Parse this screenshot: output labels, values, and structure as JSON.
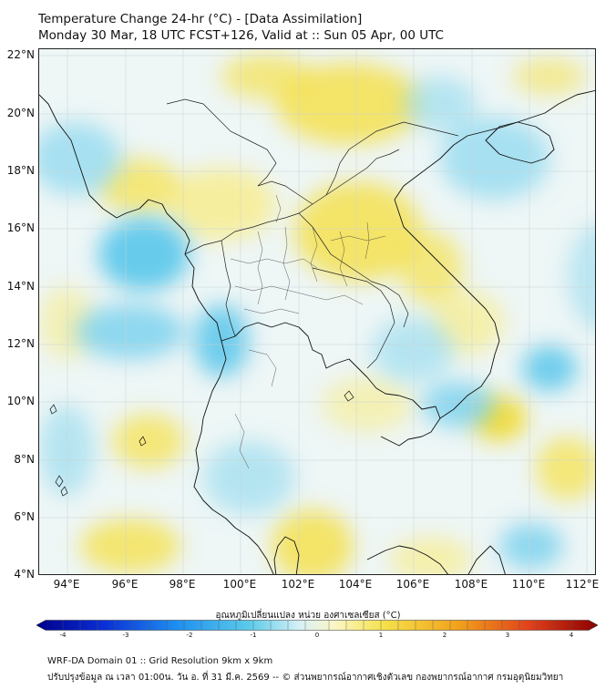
{
  "title": {
    "line1": "Temperature Change 24-hr (°C) - [Data Assimilation]",
    "line2": "Monday 30 Mar, 18 UTC FCST+126, Valid at :: Sun 05 Apr, 00 UTC"
  },
  "axes": {
    "lat_labels": [
      "22°N",
      "20°N",
      "18°N",
      "16°N",
      "14°N",
      "12°N",
      "10°N",
      "8°N",
      "6°N",
      "4°N"
    ],
    "lon_labels": [
      "94°E",
      "96°E",
      "98°E",
      "100°E",
      "102°E",
      "104°E",
      "106°E",
      "108°E",
      "110°E",
      "112°E"
    ]
  },
  "colorbar": {
    "title": "อุณหภูมิเปลี่ยนแปลง หน่วย องศาเซลเซียส (°C)",
    "ticks": [
      "-4",
      "-3",
      "-2",
      "-1",
      "0",
      "1",
      "2",
      "3",
      "4"
    ],
    "range": [
      -4,
      4
    ],
    "low_color": "#00008b",
    "high_color": "#8b0000"
  },
  "footer": {
    "line1": "WRF-DA Domain 01 :: Grid Resolution 9km x 9km",
    "line2": "ปรับปรุงข้อมูล ณ เวลา 01:00น. วัน อ. ที่ 31 มี.ค. 2569 -- © ส่วนพยากรณ์อากาศเชิงตัวเลข กองพยากรณ์อากาศ กรมอุตุนิยมวิทยา"
  },
  "colors": {
    "warm": "#f2df3a",
    "cool": "#5cc8ea",
    "neutral": "#eef6f6",
    "coast": "#111111"
  }
}
